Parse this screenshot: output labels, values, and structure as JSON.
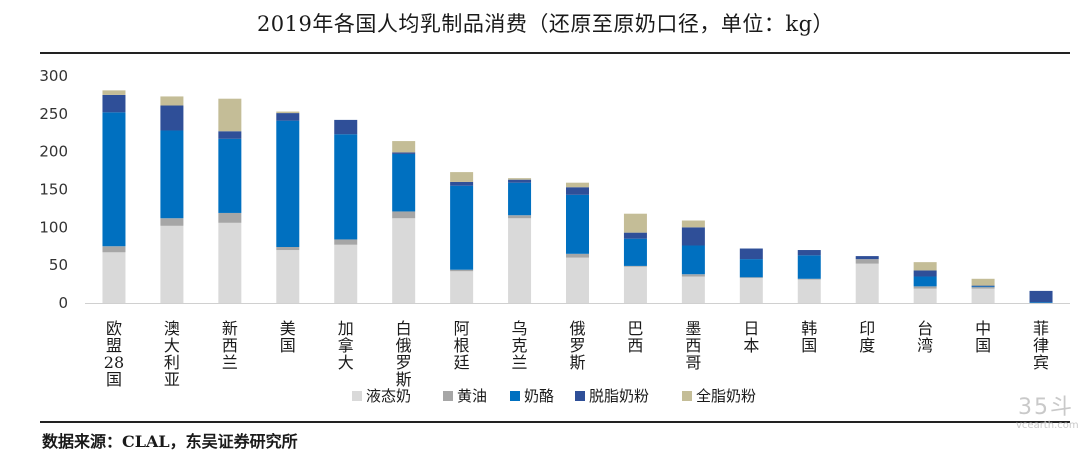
{
  "chart_data": {
    "type": "bar",
    "stacked": true,
    "title": "2019年各国人均乳制品消费（还原至原奶口径，单位：kg）",
    "xlabel": "",
    "ylabel": "",
    "ylim": [
      0,
      300
    ],
    "yticks": [
      0,
      50,
      100,
      150,
      200,
      250,
      300
    ],
    "grid": false,
    "legend_position": "bottom",
    "categories": [
      "欧盟28国",
      "澳大利亚",
      "新西兰",
      "美国",
      "加拿大",
      "白俄罗斯",
      "阿根廷",
      "乌克兰",
      "俄罗斯",
      "巴西",
      "墨西哥",
      "日本",
      "韩国",
      "印度",
      "台湾",
      "中国",
      "菲律宾"
    ],
    "series": [
      {
        "name": "液态奶",
        "color": "#d9d9d9",
        "values": [
          67,
          102,
          106,
          70,
          77,
          112,
          42,
          112,
          60,
          48,
          35,
          33,
          31,
          52,
          19,
          19,
          0
        ]
      },
      {
        "name": "黄油",
        "color": "#a6a6a6",
        "values": [
          8,
          10,
          13,
          4,
          7,
          9,
          2,
          4,
          5,
          1,
          3,
          1,
          1,
          6,
          3,
          2,
          0
        ]
      },
      {
        "name": "奶酪",
        "color": "#0070c0",
        "values": [
          177,
          116,
          98,
          167,
          139,
          76,
          111,
          43,
          78,
          36,
          38,
          24,
          31,
          0,
          13,
          1,
          1
        ]
      },
      {
        "name": "脱脂奶粉",
        "color": "#2f4f98",
        "values": [
          23,
          33,
          10,
          10,
          19,
          2,
          5,
          4,
          10,
          8,
          24,
          14,
          7,
          4,
          8,
          1,
          15
        ]
      },
      {
        "name": "全脂奶粉",
        "color": "#c4bd97",
        "values": [
          6,
          12,
          43,
          2,
          0,
          15,
          13,
          2,
          6,
          25,
          9,
          0,
          0,
          0,
          11,
          9,
          0
        ]
      }
    ]
  },
  "source": "数据来源：CLAL，东吴证券研究所",
  "watermark": {
    "big": "35斗",
    "small": "vcearth.com"
  }
}
